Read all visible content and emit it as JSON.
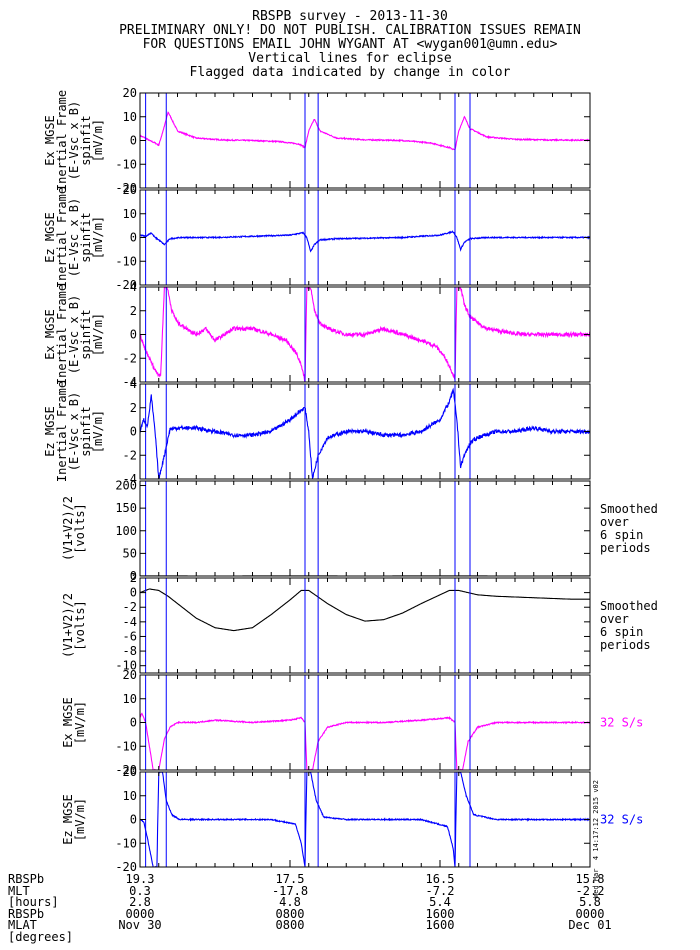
{
  "header": {
    "lines": [
      "RBSPB survey - 2013-11-30",
      "PRELIMINARY ONLY! DO NOT PUBLISH. CALIBRATION ISSUES REMAIN",
      "FOR QUESTIONS EMAIL JOHN WYGANT AT <wygan001@umn.edu>",
      "Vertical lines for eclipse",
      "Flagged data indicated by change in color"
    ]
  },
  "stamp": "Wed Mar  4 14:17:12 2015 v02",
  "colors": {
    "magenta": "#ff00ff",
    "blue": "#0000ff",
    "black": "#000000",
    "eclipse": "#0000ff"
  },
  "chart_data": {
    "type": "line",
    "x_axis": {
      "unit": "hours",
      "range": [
        0,
        24
      ],
      "ticks": [
        0,
        8,
        16,
        24
      ],
      "tick_labels": [
        "Nov 30",
        "0800",
        "1600",
        "Dec 01"
      ],
      "ephemeris_rows": [
        {
          "label": "RBSPb",
          "values": [
            "19.3",
            "17.5",
            "16.5",
            "15.8"
          ]
        },
        {
          "label": "MLT",
          "values": [
            "0.3",
            "-17.8",
            "-7.2",
            "-2.2"
          ]
        },
        {
          "label": "[hours]",
          "values": [
            "2.8",
            "4.8",
            "5.4",
            "5.8"
          ]
        },
        {
          "label": "RBSPb",
          "values": [
            "0000",
            "0800",
            "1600",
            "0000"
          ]
        },
        {
          "label": "MLAT",
          "values": []
        },
        {
          "label": "[degrees]",
          "values": []
        }
      ]
    },
    "eclipse_lines_hours": [
      0.3,
      1.4,
      8.8,
      9.5,
      16.8,
      17.6
    ],
    "panels": [
      {
        "ylabel": [
          "Ex MGSE",
          "Inertial Frame",
          "(E-Vsc x B)",
          "spinfit",
          "[mV/m]"
        ],
        "ylim": [
          -20,
          20
        ],
        "yticks": [
          -20,
          -10,
          0,
          10,
          20
        ],
        "tick_labels": [
          "-20",
          "-10",
          "0",
          "10",
          "20"
        ],
        "color": "#ff00ff",
        "side_label": "",
        "x": [
          0,
          0.3,
          0.5,
          0.8,
          1.0,
          1.3,
          1.5,
          2.0,
          3.0,
          4.5,
          6.0,
          7.5,
          8.5,
          8.8,
          9.0,
          9.3,
          9.6,
          10.5,
          12,
          14,
          15.5,
          16.5,
          16.8,
          17.0,
          17.3,
          17.6,
          18.5,
          20,
          22,
          24
        ],
        "y": [
          2,
          1,
          0,
          -1,
          -2,
          6,
          12,
          4,
          1,
          0.2,
          0,
          -0.5,
          -1.5,
          -3,
          4,
          9,
          4,
          1,
          0.3,
          0,
          -1,
          -3,
          -4,
          4,
          10,
          5,
          1.5,
          0.5,
          0.2,
          0.1
        ]
      },
      {
        "ylabel": [
          "Ez MGSE",
          "Inertial Frame",
          "(E-Vsc x B)",
          "spinfit",
          "[mV/m]"
        ],
        "ylim": [
          -20,
          20
        ],
        "yticks": [
          -20,
          -10,
          0,
          10,
          20
        ],
        "tick_labels": [
          "-20",
          "-10",
          "0",
          "10",
          "20"
        ],
        "color": "#0000ff",
        "side_label": "",
        "x": [
          0,
          0.3,
          0.6,
          0.8,
          1.0,
          1.3,
          1.6,
          2.2,
          4,
          6,
          8,
          8.7,
          8.9,
          9.1,
          9.3,
          9.6,
          10.5,
          12,
          14,
          16,
          16.7,
          16.9,
          17.1,
          17.3,
          17.6,
          18.5,
          20,
          22,
          24
        ],
        "y": [
          1,
          0.5,
          2,
          0,
          -1,
          -3,
          -0.5,
          0,
          0,
          0.5,
          1,
          2,
          0,
          -6,
          -3,
          -1,
          -0.5,
          -0.3,
          0,
          1,
          2.5,
          0,
          -5,
          -2,
          -0.5,
          0,
          0,
          0,
          0
        ]
      },
      {
        "ylabel": [
          "Ex MGSE",
          "Inertial Frame",
          "(E-Vsc x B)",
          "spinfit",
          "[mV/m]"
        ],
        "ylim": [
          -4,
          4
        ],
        "yticks": [
          -4,
          -2,
          0,
          2,
          4
        ],
        "tick_labels": [
          "-4",
          "-2",
          "0",
          "2",
          "4"
        ],
        "color": "#ff00ff",
        "side_label": "",
        "x": [
          0,
          0.2,
          0.5,
          0.8,
          1.1,
          1.3,
          1.45,
          1.7,
          2.0,
          2.5,
          3.0,
          3.5,
          4.0,
          5.0,
          6.0,
          7.0,
          7.8,
          8.3,
          8.6,
          8.8,
          8.9,
          9.1,
          9.3,
          9.6,
          10,
          11,
          12,
          13,
          14,
          15,
          15.8,
          16.3,
          16.6,
          16.8,
          16.9,
          17.1,
          17.3,
          17.6,
          18,
          18.5,
          19.5,
          20.5,
          21.5,
          22.5,
          23.5,
          24
        ],
        "y": [
          0,
          -1,
          -2,
          -3,
          -3.5,
          4,
          4,
          2,
          1,
          0.5,
          0,
          0.5,
          -0.5,
          0.5,
          0.5,
          0,
          -0.5,
          -1.5,
          -2.5,
          -4,
          4,
          4,
          2,
          1,
          0.5,
          0,
          0,
          0.5,
          0,
          -0.5,
          -1,
          -2,
          -3,
          -3.7,
          4,
          4,
          2.5,
          1.5,
          1,
          0.5,
          0.2,
          0,
          0,
          0,
          0,
          0
        ]
      },
      {
        "ylabel": [
          "Ez MGSE",
          "Inertial Frame",
          "(E-Vsc x B)",
          "spinfit",
          "[mV/m]"
        ],
        "ylim": [
          -4,
          4
        ],
        "yticks": [
          -4,
          -2,
          0,
          2,
          4
        ],
        "tick_labels": [
          "-4",
          "-2",
          "0",
          "2",
          "4"
        ],
        "color": "#0000ff",
        "side_label": "",
        "x": [
          0,
          0.2,
          0.4,
          0.6,
          0.8,
          1.0,
          1.3,
          1.6,
          2.0,
          3.0,
          4.0,
          5.0,
          6.0,
          7.0,
          8.0,
          8.6,
          8.8,
          9.0,
          9.2,
          9.5,
          10,
          11,
          12,
          13,
          14,
          15,
          16,
          16.5,
          16.7,
          16.9,
          17.1,
          17.3,
          17.6,
          18,
          19,
          20,
          21,
          22,
          23,
          24
        ],
        "y": [
          0,
          1,
          0.5,
          3,
          0,
          -4,
          -2,
          0.2,
          0.3,
          0.3,
          0,
          -0.3,
          -0.3,
          0,
          1,
          1.8,
          2,
          0,
          -4,
          -2,
          -0.5,
          0,
          0,
          -0.3,
          -0.3,
          0,
          1,
          2.5,
          3.5,
          1,
          -3,
          -2,
          -1,
          -0.5,
          0,
          0,
          0.3,
          0,
          0,
          0
        ]
      },
      {
        "ylabel": [
          "(V1+V2)/2",
          "[volts]"
        ],
        "ylim": [
          0,
          210
        ],
        "yticks": [
          0,
          50,
          100,
          150,
          200
        ],
        "tick_labels": [
          "0",
          "50",
          "100",
          "150",
          "200"
        ],
        "color": "#000000",
        "side_label": "Smoothed\nover\n6 spin\nperiods",
        "x": [
          0,
          4,
          8,
          12,
          16,
          20,
          24
        ],
        "y": [
          0.3,
          0,
          0.3,
          0,
          0.3,
          0,
          0.2
        ]
      },
      {
        "ylabel": [
          "(V1+V2)/2",
          "[volts]"
        ],
        "ylim": [
          -11,
          2
        ],
        "yticks": [
          -10,
          -8,
          -6,
          -4,
          -2,
          0,
          2
        ],
        "tick_labels": [
          "-10",
          "-8",
          "-6",
          "-4",
          "-2",
          "0",
          "2"
        ],
        "color": "#000000",
        "side_label": "Smoothed\nover\n6 spin\nperiods",
        "x": [
          0,
          0.5,
          1,
          1.5,
          2,
          3,
          4,
          5,
          6,
          7,
          8,
          8.6,
          9,
          10,
          11,
          12,
          13,
          14,
          15,
          16,
          16.5,
          17,
          17.5,
          18,
          19,
          20,
          21,
          22,
          23,
          24
        ],
        "y": [
          0,
          0.5,
          0.3,
          -0.5,
          -1.5,
          -3.5,
          -4.8,
          -5.2,
          -4.8,
          -3,
          -1,
          0.3,
          0.3,
          -1.5,
          -3,
          -3.9,
          -3.7,
          -2.8,
          -1.5,
          -0.3,
          0.3,
          0.3,
          0,
          -0.3,
          -0.5,
          -0.6,
          -0.7,
          -0.8,
          -0.9,
          -0.9
        ]
      },
      {
        "ylabel": [
          "Ex MGSE",
          "[mV/m]"
        ],
        "ylim": [
          -20,
          20
        ],
        "yticks": [
          -20,
          -10,
          0,
          10,
          20
        ],
        "tick_labels": [
          "-20",
          "-10",
          "0",
          "10",
          "20"
        ],
        "color": "#ff00ff",
        "side_label": "32 S/s",
        "x": [
          0,
          0.1,
          0.3,
          0.5,
          0.7,
          0.9,
          1.0,
          1.3,
          1.6,
          2.0,
          3,
          4,
          6,
          8,
          8.6,
          8.8,
          8.9,
          9.2,
          9.5,
          10,
          11,
          13,
          15,
          16.5,
          16.8,
          16.9,
          17.2,
          17.5,
          18,
          19,
          21,
          24
        ],
        "y": [
          2,
          4,
          0,
          -10,
          -20,
          -20,
          -20,
          -7,
          -2,
          0,
          0,
          1,
          0,
          1,
          2,
          0,
          -20,
          -20,
          -8,
          -2,
          0,
          0,
          1,
          2,
          0,
          -20,
          -20,
          -8,
          -2,
          0,
          0,
          0
        ]
      },
      {
        "ylabel": [
          "Ez MGSE",
          "[mV/m]"
        ],
        "ylim": [
          -20,
          20
        ],
        "yticks": [
          -20,
          -10,
          0,
          10,
          20
        ],
        "tick_labels": [
          "-20",
          "-10",
          "0",
          "10",
          "20"
        ],
        "color": "#0000ff",
        "side_label": "32 S/s",
        "x": [
          0,
          0.2,
          0.4,
          0.7,
          0.9,
          1.0,
          1.2,
          1.4,
          1.7,
          2.1,
          3,
          5,
          7,
          8.3,
          8.6,
          8.8,
          8.9,
          9.1,
          9.4,
          9.8,
          11,
          13,
          15,
          16.4,
          16.7,
          16.8,
          16.9,
          17.1,
          17.4,
          17.8,
          19,
          21,
          24
        ],
        "y": [
          0,
          -1,
          -8,
          -20,
          -20,
          20,
          20,
          8,
          2,
          0,
          0,
          0,
          0,
          -2,
          -10,
          -20,
          20,
          20,
          8,
          1,
          0,
          0,
          0,
          -3,
          -12,
          -20,
          20,
          20,
          10,
          2,
          0,
          0,
          0
        ]
      }
    ]
  }
}
